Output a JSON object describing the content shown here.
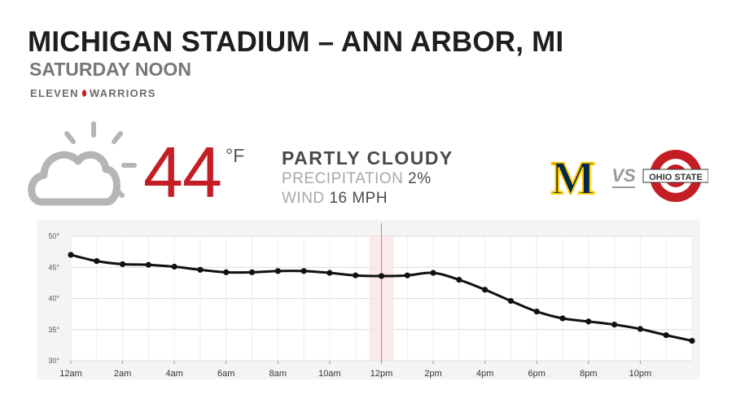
{
  "header": {
    "title": "MICHIGAN STADIUM – ANN ARBOR, MI",
    "subtitle": "SATURDAY NOON",
    "brand_left": "ELEVEN",
    "brand_right": "WARRIORS"
  },
  "current": {
    "icon": "partly-cloudy-icon",
    "temp": "44",
    "unit": "°F",
    "condition": "PARTLY CLOUDY",
    "precip_label": "PRECIPITATION",
    "precip_value": "2%",
    "wind_label": "WIND",
    "wind_value": "16 MPH"
  },
  "matchup": {
    "home_logo": "M",
    "vs": "VS",
    "away_logo": "OHIO STATE"
  },
  "colors": {
    "accent_red": "#c41e24",
    "michigan_blue": "#00274c",
    "michigan_maize": "#ffcb05",
    "osu_red": "#c41e24"
  },
  "chart_data": {
    "type": "line",
    "x": [
      "12am",
      "1am",
      "2am",
      "3am",
      "4am",
      "5am",
      "6am",
      "7am",
      "8am",
      "9am",
      "10am",
      "11am",
      "12pm",
      "1pm",
      "2pm",
      "3pm",
      "4pm",
      "5pm",
      "6pm",
      "7pm",
      "8pm",
      "9pm",
      "10pm",
      "11pm",
      "12am"
    ],
    "tick_labels": [
      "12am",
      "2am",
      "4am",
      "6am",
      "8am",
      "10am",
      "12pm",
      "2pm",
      "4pm",
      "6pm",
      "8pm",
      "10pm"
    ],
    "series": [
      {
        "values": [
          47,
          46,
          45.5,
          45.4,
          45.1,
          44.6,
          44.2,
          44.2,
          44.4,
          44.4,
          44.1,
          43.7,
          43.6,
          43.7,
          44.1,
          43,
          41.4,
          39.6,
          37.9,
          36.8,
          36.3,
          35.8,
          35.1,
          34.1,
          33.2
        ]
      }
    ],
    "ylim": [
      30,
      50
    ],
    "yticks": [
      "30°",
      "35°",
      "40°",
      "45°",
      "50°"
    ],
    "highlight": "12pm",
    "grid": true
  }
}
